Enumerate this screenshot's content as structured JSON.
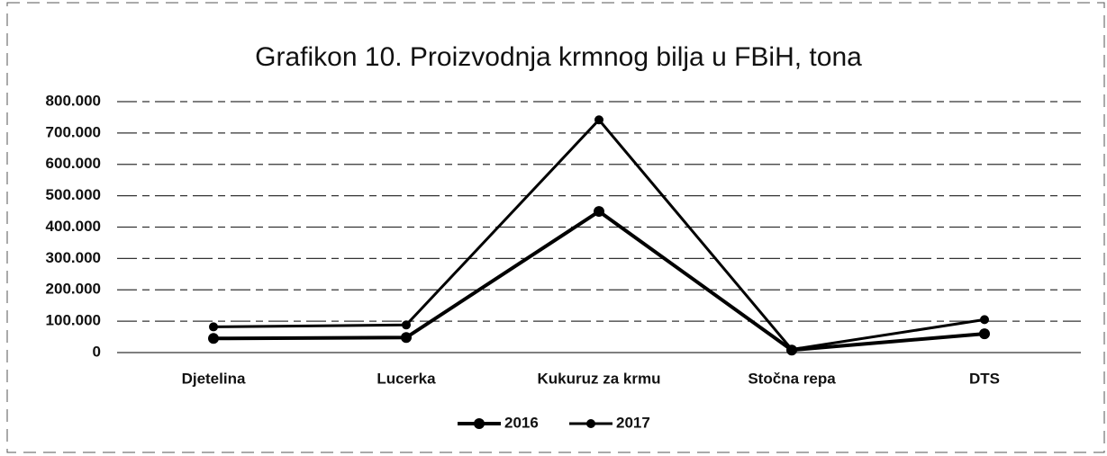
{
  "chart_data": {
    "type": "line",
    "title": "Grafikon 10. Proizvodnja krmnog bilja u FBiH, tona",
    "categories": [
      "Djetelina",
      "Lucerka",
      "Kukuruz za krmu",
      "Stočna repa",
      "DTS"
    ],
    "series": [
      {
        "name": "2016",
        "color": "#000000",
        "values": [
          45000,
          48000,
          450000,
          8000,
          60000
        ]
      },
      {
        "name": "2017",
        "color": "#000000",
        "values": [
          82000,
          88000,
          742000,
          10000,
          105000
        ]
      }
    ],
    "ylim": [
      0,
      800000
    ],
    "yticks": [
      0,
      {
        "value": 100000,
        "label": "100.000"
      },
      {
        "value": 200000,
        "label": "200.000"
      },
      {
        "value": 300000,
        "label": "300.000"
      },
      {
        "value": 400000,
        "label": "400.000"
      },
      {
        "value": 500000,
        "label": "500.000"
      },
      {
        "value": 600000,
        "label": "600.000"
      },
      {
        "value": 700000,
        "label": "700.000"
      },
      {
        "value": 800000,
        "label": "800.000"
      }
    ],
    "grid": true,
    "legend": "bottom"
  }
}
